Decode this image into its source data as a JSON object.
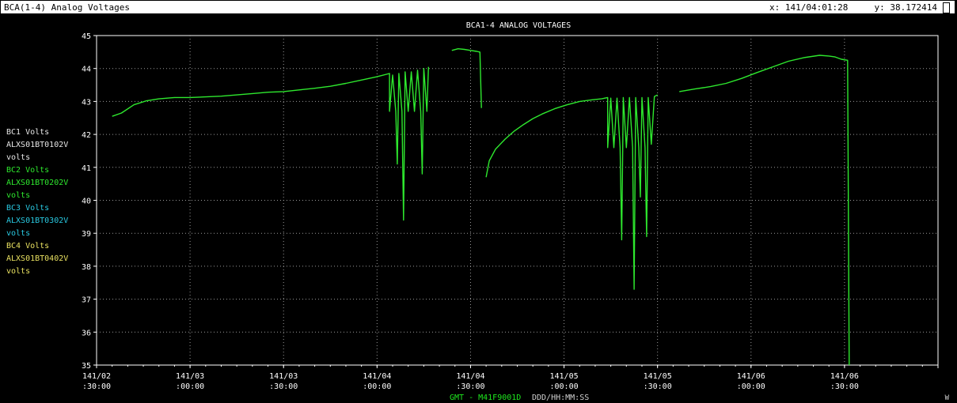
{
  "window": {
    "title": "BCA(1-4) Analog Voltages",
    "x_readout": "x: 141/04:01:28",
    "y_readout": "y: 38.172414"
  },
  "legend": [
    {
      "name": "BC1 Volts",
      "id": "ALXS01BT0102V",
      "unit": "volts",
      "color": "#e6e6e6"
    },
    {
      "name": "BC2 Volts",
      "id": "ALXS01BT0202V",
      "unit": "volts",
      "color": "#2ee82e"
    },
    {
      "name": "BC3 Volts",
      "id": "ALXS01BT0302V",
      "unit": "volts",
      "color": "#29c8e0"
    },
    {
      "name": "BC4 Volts",
      "id": "ALXS01BT0402V",
      "unit": "volts",
      "color": "#e8e060"
    }
  ],
  "footer": {
    "time_label": "GMT - M41F9001D",
    "format_label": "DDD/HH:MM:SS",
    "corner": "W"
  },
  "chart_data": {
    "type": "line",
    "title": "BCA1-4 ANALOG VOLTAGES",
    "grid": true,
    "ylim": [
      35,
      45
    ],
    "yticks": [
      35,
      36,
      37,
      38,
      39,
      40,
      41,
      42,
      43,
      44,
      45
    ],
    "xticks": [
      {
        "t": 0,
        "line1": "141/02",
        "line2": ":30:00"
      },
      {
        "t": 30,
        "line1": "141/03",
        "line2": ":00:00"
      },
      {
        "t": 60,
        "line1": "141/03",
        "line2": ":30:00"
      },
      {
        "t": 90,
        "line1": "141/04",
        "line2": ":00:00"
      },
      {
        "t": 120,
        "line1": "141/04",
        "line2": ":30:00"
      },
      {
        "t": 150,
        "line1": "141/05",
        "line2": ":00:00"
      },
      {
        "t": 180,
        "line1": "141/05",
        "line2": ":30:00"
      },
      {
        "t": 210,
        "line1": "141/06",
        "line2": ":00:00"
      },
      {
        "t": 240,
        "line1": "141/06",
        "line2": ":30:00"
      }
    ],
    "series": [
      {
        "name": "BC2 Volts",
        "color": "#2ee82e",
        "points": [
          [
            5,
            42.55
          ],
          [
            8,
            42.65
          ],
          [
            12,
            42.9
          ],
          [
            16,
            43.02
          ],
          [
            20,
            43.08
          ],
          [
            25,
            43.12
          ],
          [
            30,
            43.12
          ],
          [
            35,
            43.14
          ],
          [
            40,
            43.16
          ],
          [
            45,
            43.2
          ],
          [
            50,
            43.24
          ],
          [
            55,
            43.28
          ],
          [
            60,
            43.3
          ],
          [
            65,
            43.35
          ],
          [
            70,
            43.4
          ],
          [
            75,
            43.46
          ],
          [
            80,
            43.55
          ],
          [
            85,
            43.65
          ],
          [
            90,
            43.75
          ],
          [
            94,
            43.85
          ],
          [
            94,
            42.7
          ],
          [
            95,
            43.8
          ],
          [
            96,
            42.7
          ],
          [
            96.5,
            41.1
          ],
          [
            97,
            43.85
          ],
          [
            98,
            42.7
          ],
          [
            98.5,
            39.4
          ],
          [
            99,
            43.9
          ],
          [
            100,
            42.7
          ],
          [
            101,
            43.9
          ],
          [
            102,
            42.7
          ],
          [
            103,
            43.95
          ],
          [
            104,
            42.7
          ],
          [
            104.5,
            40.8
          ],
          [
            105,
            44.0
          ],
          [
            106,
            42.7
          ],
          [
            106.5,
            44.05
          ]
        ]
      },
      {
        "name": "BC2 Volts",
        "color": "#2ee82e",
        "points": [
          [
            114,
            44.55
          ],
          [
            116,
            44.6
          ],
          [
            118,
            44.58
          ],
          [
            120,
            44.55
          ],
          [
            122,
            44.52
          ],
          [
            123,
            44.5
          ],
          [
            123.5,
            42.8
          ]
        ]
      },
      {
        "name": "BC2 Volts",
        "color": "#2ee82e",
        "points": [
          [
            125,
            40.7
          ],
          [
            126,
            41.2
          ],
          [
            128,
            41.55
          ],
          [
            131,
            41.85
          ],
          [
            134,
            42.1
          ],
          [
            137,
            42.3
          ],
          [
            140,
            42.48
          ],
          [
            143,
            42.62
          ],
          [
            147,
            42.78
          ],
          [
            151,
            42.9
          ],
          [
            155,
            43.0
          ],
          [
            159,
            43.05
          ],
          [
            162,
            43.08
          ],
          [
            164,
            43.12
          ],
          [
            164,
            41.6
          ],
          [
            165,
            43.1
          ],
          [
            166,
            41.6
          ],
          [
            167,
            43.1
          ],
          [
            168,
            41.6
          ],
          [
            168.5,
            38.8
          ],
          [
            169,
            43.12
          ],
          [
            170,
            41.6
          ],
          [
            171,
            43.12
          ],
          [
            172,
            41.6
          ],
          [
            172.5,
            37.3
          ],
          [
            173,
            43.12
          ],
          [
            174,
            41.6
          ],
          [
            174.5,
            40.1
          ],
          [
            175,
            43.12
          ],
          [
            176,
            41.6
          ],
          [
            176.5,
            38.9
          ],
          [
            177,
            43.12
          ],
          [
            178,
            41.7
          ],
          [
            179,
            43.15
          ],
          [
            180,
            43.2
          ]
        ]
      },
      {
        "name": "BC2 Volts",
        "color": "#2ee82e",
        "points": [
          [
            187,
            43.3
          ],
          [
            192,
            43.38
          ],
          [
            197,
            43.45
          ],
          [
            202,
            43.55
          ],
          [
            207,
            43.7
          ],
          [
            212,
            43.88
          ],
          [
            217,
            44.05
          ],
          [
            222,
            44.22
          ],
          [
            227,
            44.33
          ],
          [
            232,
            44.4
          ],
          [
            235,
            44.38
          ],
          [
            237,
            44.35
          ],
          [
            239,
            44.28
          ],
          [
            241,
            44.25
          ],
          [
            241.5,
            35.0
          ]
        ]
      }
    ]
  }
}
